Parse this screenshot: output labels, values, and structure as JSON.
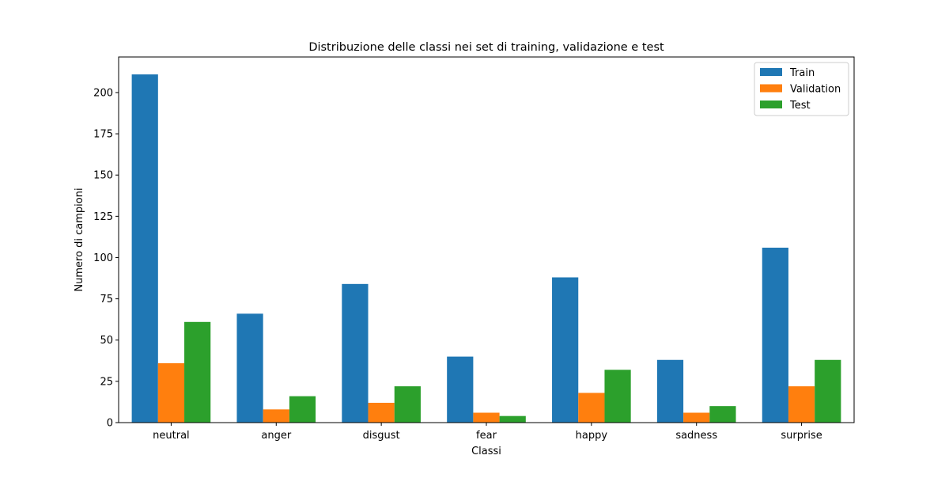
{
  "chart_data": {
    "type": "bar",
    "title": "Distribuzione delle classi nei set di training, validazione e test",
    "xlabel": "Classi",
    "ylabel": "Numero di campioni",
    "categories": [
      "neutral",
      "anger",
      "disgust",
      "fear",
      "happy",
      "sadness",
      "surprise"
    ],
    "series": [
      {
        "name": "Train",
        "color": "#1f77b4",
        "values": [
          211,
          66,
          84,
          40,
          88,
          38,
          106
        ]
      },
      {
        "name": "Validation",
        "color": "#ff7f0e",
        "values": [
          36,
          8,
          12,
          6,
          18,
          6,
          22
        ]
      },
      {
        "name": "Test",
        "color": "#2ca02c",
        "values": [
          61,
          16,
          22,
          4,
          32,
          10,
          38
        ]
      }
    ],
    "ylim": [
      0,
      221.55
    ],
    "yticks": [
      "0",
      "25",
      "50",
      "75",
      "100",
      "125",
      "150",
      "175",
      "200"
    ],
    "grid": false,
    "legend_position": "top-right"
  }
}
